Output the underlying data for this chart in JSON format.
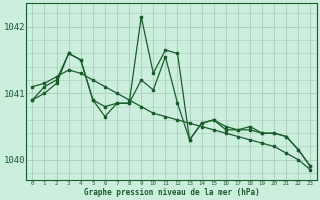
{
  "title": "Graphe pression niveau de la mer (hPa)",
  "background_color": "#cceedd",
  "plot_bg_color": "#cceedd",
  "grid_color": "#aaccbb",
  "line_color": "#1a5c2a",
  "xlim": [
    -0.5,
    23.5
  ],
  "ylim": [
    1039.7,
    1042.35
  ],
  "yticks": [
    1040,
    1041,
    1042
  ],
  "xticks": [
    0,
    1,
    2,
    3,
    4,
    5,
    6,
    7,
    8,
    9,
    10,
    11,
    12,
    13,
    14,
    15,
    16,
    17,
    18,
    19,
    20,
    21,
    22,
    23
  ],
  "series": [
    [
      1040.9,
      1041.0,
      1041.15,
      1041.6,
      1041.5,
      1040.9,
      1040.65,
      1040.85,
      1040.85,
      1042.15,
      1041.3,
      1041.65,
      1041.6,
      1040.3,
      1040.55,
      1040.6,
      1040.5,
      1040.45,
      1040.5,
      1040.4,
      1040.4,
      1040.35,
      1040.15,
      1039.9
    ],
    [
      1040.9,
      1041.1,
      1041.2,
      1041.6,
      1041.5,
      1040.9,
      1040.8,
      1040.85,
      1040.85,
      1041.2,
      1041.05,
      1041.55,
      1040.85,
      1040.3,
      1040.55,
      1040.6,
      1040.45,
      1040.45,
      1040.45,
      1040.4,
      1040.4,
      1040.35,
      1040.15,
      1039.9
    ],
    [
      1041.1,
      1041.15,
      1041.25,
      1041.35,
      1041.3,
      1041.2,
      1041.1,
      1041.0,
      1040.9,
      1040.8,
      1040.7,
      1040.65,
      1040.6,
      1040.55,
      1040.5,
      1040.45,
      1040.4,
      1040.35,
      1040.3,
      1040.25,
      1040.2,
      1040.1,
      1040.0,
      1039.85
    ]
  ],
  "figsize": [
    3.2,
    2.0
  ],
  "dpi": 100
}
